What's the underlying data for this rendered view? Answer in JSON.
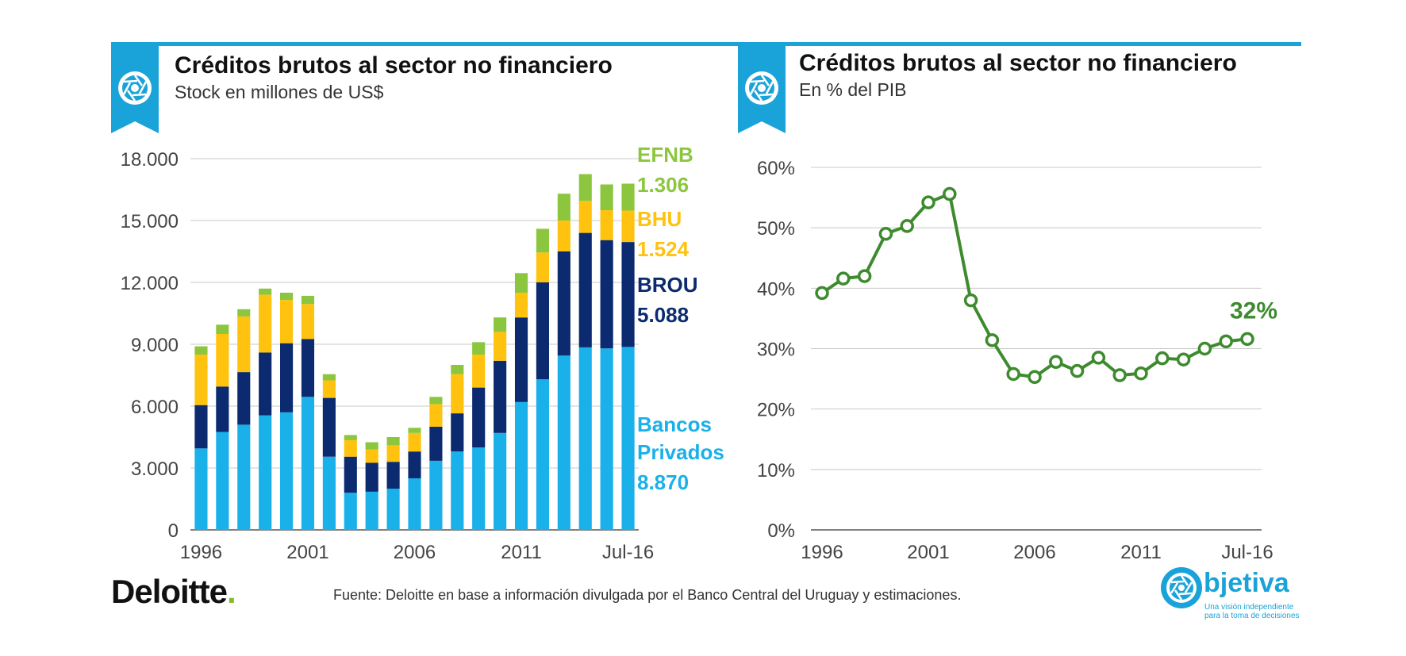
{
  "left_panel": {
    "title": "Créditos brutos al sector no financiero",
    "subtitle": "Stock en millones  de US$"
  },
  "right_panel": {
    "title": "Créditos brutos al sector no financiero",
    "subtitle": "En % del PIB"
  },
  "colors": {
    "accent": "#1aa3d9",
    "efnb": "#8cc63f",
    "bhu": "#ffc20e",
    "brou": "#0b2a6f",
    "privados": "#1ab0ea",
    "line": "#3e8b2f",
    "grid": "#c8c8c8"
  },
  "chart_data": [
    {
      "type": "bar",
      "stacked": true,
      "x_tick_labels": [
        "1996",
        "2001",
        "2006",
        "2011",
        "Jul-16"
      ],
      "y_tick_labels": [
        "0",
        "3.000",
        "6.000",
        "9.000",
        "12.000",
        "15.000",
        "18.000"
      ],
      "ylim": [
        0,
        18000
      ],
      "grid": true,
      "categories": [
        "1996",
        "1997",
        "1998",
        "1999",
        "2000",
        "2001",
        "2002",
        "2003",
        "2004",
        "2005",
        "2006",
        "2007",
        "2008",
        "2009",
        "2010",
        "2011",
        "2012",
        "2013",
        "2014",
        "2015",
        "Jul-16"
      ],
      "series": [
        {
          "name_lines": [
            "Bancos",
            "Privados"
          ],
          "end_label": "8.870",
          "values": [
            3950,
            4750,
            5100,
            5550,
            5700,
            6450,
            3550,
            1800,
            1850,
            2000,
            2500,
            3350,
            3800,
            4000,
            4700,
            6200,
            7300,
            8450,
            8850,
            8800,
            8870
          ]
        },
        {
          "name_lines": [
            "BROU"
          ],
          "end_label": "5.088",
          "values": [
            2100,
            2200,
            2550,
            3050,
            3350,
            2800,
            2850,
            1750,
            1400,
            1300,
            1300,
            1650,
            1850,
            2900,
            3500,
            4100,
            4700,
            5050,
            5550,
            5250,
            5088
          ]
        },
        {
          "name_lines": [
            "BHU"
          ],
          "end_label": "1.524",
          "values": [
            2450,
            2550,
            2700,
            2800,
            2100,
            1700,
            850,
            800,
            650,
            800,
            900,
            1100,
            1900,
            1600,
            1400,
            1200,
            1450,
            1500,
            1550,
            1450,
            1524
          ]
        },
        {
          "name_lines": [
            "EFNB"
          ],
          "end_label": "1.306",
          "values": [
            400,
            450,
            350,
            300,
            350,
            400,
            300,
            250,
            350,
            400,
            250,
            350,
            450,
            600,
            700,
            950,
            1150,
            1300,
            1300,
            1250,
            1306
          ]
        }
      ]
    },
    {
      "type": "line",
      "x_tick_labels": [
        "1996",
        "2001",
        "2006",
        "2011",
        "Jul-16"
      ],
      "y_tick_labels": [
        "0%",
        "10%",
        "20%",
        "30%",
        "40%",
        "50%",
        "60%"
      ],
      "ylim": [
        0,
        60
      ],
      "grid": true,
      "categories": [
        "1996",
        "1997",
        "1998",
        "1999",
        "2000",
        "2001",
        "2002",
        "2003",
        "2004",
        "2005",
        "2006",
        "2007",
        "2008",
        "2009",
        "2010",
        "2011",
        "2012",
        "2013",
        "2014",
        "2015",
        "Jul-16"
      ],
      "values": [
        39.2,
        41.6,
        42.0,
        49.0,
        50.3,
        54.2,
        55.6,
        38.0,
        31.4,
        25.8,
        25.3,
        27.8,
        26.3,
        28.5,
        25.6,
        25.9,
        28.4,
        28.2,
        30.0,
        31.2,
        31.6
      ],
      "end_label": "32%"
    }
  ],
  "footer": {
    "source": "Fuente: Deloitte en base a información divulgada por el Banco Central del Uruguay y estimaciones.",
    "deloitte": "Deloitte",
    "deloitte_dot": ".",
    "objetiva_word": "bjetiva",
    "objetiva_tag1": "Una visión independiente",
    "objetiva_tag2": "para la toma de decisiones"
  },
  "icons": {
    "flag": "camera-shutter-icon",
    "objetiva": "camera-shutter-icon"
  }
}
